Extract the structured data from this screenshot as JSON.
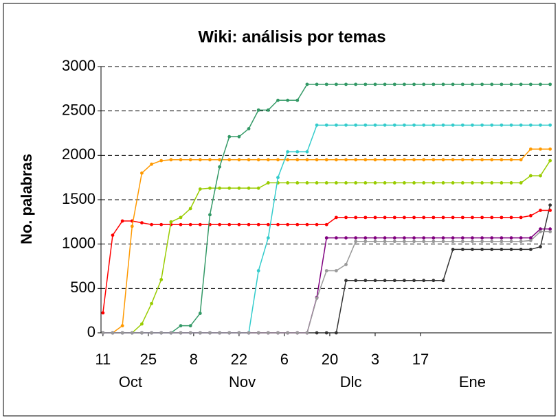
{
  "chart_data": {
    "type": "line",
    "title": "Wiki: análisis por temas",
    "ylabel": "No. palabras",
    "x": [
      0,
      3,
      6,
      9,
      12,
      15,
      18,
      21,
      24,
      27,
      30,
      33,
      36,
      39,
      42,
      45,
      48,
      51,
      54,
      57,
      60,
      63,
      66,
      69,
      72,
      75,
      78,
      81,
      84,
      87,
      90,
      93,
      96,
      99,
      102,
      105,
      108,
      111,
      114,
      117,
      120,
      123,
      126,
      129,
      132,
      135,
      138
    ],
    "xlim": [
      -0.6,
      138.5
    ],
    "xticks": [
      {
        "value": 0,
        "label": "11"
      },
      {
        "value": 14,
        "label": "25"
      },
      {
        "value": 28,
        "label": "8"
      },
      {
        "value": 42,
        "label": "22"
      },
      {
        "value": 56,
        "label": "6"
      },
      {
        "value": 70,
        "label": "20"
      },
      {
        "value": 84,
        "label": "3"
      },
      {
        "value": 98,
        "label": "17"
      }
    ],
    "month_labels": [
      {
        "value": 8.5,
        "label": "Oct"
      },
      {
        "value": 43,
        "label": "Nov"
      },
      {
        "value": 76.5,
        "label": "Dlc"
      },
      {
        "value": 114,
        "label": "Ene"
      }
    ],
    "ylim": [
      0,
      3000
    ],
    "yticks": [
      0,
      500,
      1000,
      1500,
      2000,
      2500,
      3000
    ],
    "grid": true,
    "series": [
      {
        "color": "#333333",
        "values": [
          0,
          0,
          0,
          0,
          0,
          0,
          0,
          0,
          0,
          0,
          0,
          0,
          0,
          0,
          0,
          0,
          0,
          0,
          0,
          0,
          0,
          0,
          0,
          0,
          0,
          590,
          590,
          590,
          590,
          590,
          590,
          590,
          590,
          590,
          590,
          590,
          940,
          940,
          940,
          940,
          940,
          940,
          940,
          940,
          940,
          970,
          1440
        ]
      },
      {
        "color": "#ff0000",
        "values": [
          225,
          1100,
          1260,
          1260,
          1240,
          1220,
          1220,
          1220,
          1220,
          1220,
          1220,
          1220,
          1220,
          1220,
          1220,
          1220,
          1220,
          1220,
          1220,
          1220,
          1220,
          1220,
          1220,
          1220,
          1300,
          1300,
          1300,
          1300,
          1300,
          1300,
          1300,
          1300,
          1300,
          1300,
          1300,
          1300,
          1300,
          1300,
          1300,
          1300,
          1300,
          1300,
          1300,
          1300,
          1320,
          1380,
          1380
        ]
      },
      {
        "color": "#ff9900",
        "values": [
          0,
          0,
          80,
          1200,
          1800,
          1900,
          1940,
          1950,
          1950,
          1950,
          1950,
          1950,
          1950,
          1950,
          1950,
          1950,
          1950,
          1950,
          1950,
          1950,
          1950,
          1950,
          1950,
          1950,
          1950,
          1950,
          1950,
          1950,
          1950,
          1950,
          1950,
          1950,
          1950,
          1950,
          1950,
          1950,
          1950,
          1950,
          1950,
          1950,
          1950,
          1950,
          1950,
          1950,
          2070,
          2070,
          2070
        ]
      },
      {
        "color": "#99cc00",
        "values": [
          0,
          0,
          0,
          0,
          100,
          330,
          600,
          1250,
          1300,
          1400,
          1620,
          1630,
          1630,
          1630,
          1630,
          1630,
          1630,
          1690,
          1690,
          1690,
          1690,
          1690,
          1690,
          1690,
          1690,
          1690,
          1690,
          1690,
          1690,
          1690,
          1690,
          1690,
          1690,
          1690,
          1690,
          1690,
          1690,
          1690,
          1690,
          1690,
          1690,
          1690,
          1690,
          1690,
          1770,
          1770,
          1940
        ]
      },
      {
        "color": "#339966",
        "values": [
          0,
          0,
          0,
          0,
          0,
          0,
          0,
          0,
          80,
          80,
          220,
          1330,
          1870,
          2210,
          2210,
          2300,
          2510,
          2510,
          2620,
          2620,
          2620,
          2800,
          2800,
          2800,
          2800,
          2800,
          2800,
          2800,
          2800,
          2800,
          2800,
          2800,
          2800,
          2800,
          2800,
          2800,
          2800,
          2800,
          2800,
          2800,
          2800,
          2800,
          2800,
          2800,
          2800,
          2800,
          2800
        ]
      },
      {
        "color": "#33cccc",
        "values": [
          0,
          0,
          0,
          0,
          0,
          0,
          0,
          0,
          0,
          0,
          0,
          0,
          0,
          0,
          0,
          0,
          700,
          1070,
          1750,
          2040,
          2040,
          2040,
          2340,
          2340,
          2340,
          2340,
          2340,
          2340,
          2340,
          2340,
          2340,
          2340,
          2340,
          2340,
          2340,
          2340,
          2340,
          2340,
          2340,
          2340,
          2340,
          2340,
          2340,
          2340,
          2340,
          2340,
          2340
        ]
      },
      {
        "color": "#800080",
        "values": [
          0,
          0,
          0,
          0,
          0,
          0,
          0,
          0,
          0,
          0,
          0,
          0,
          0,
          0,
          0,
          0,
          0,
          0,
          0,
          0,
          0,
          0,
          400,
          1070,
          1070,
          1070,
          1070,
          1070,
          1070,
          1070,
          1070,
          1070,
          1070,
          1070,
          1070,
          1070,
          1070,
          1070,
          1070,
          1070,
          1070,
          1070,
          1070,
          1070,
          1070,
          1170,
          1170
        ]
      },
      {
        "color": "#999999",
        "values": [
          0,
          0,
          0,
          0,
          0,
          0,
          0,
          0,
          0,
          0,
          0,
          0,
          0,
          0,
          0,
          0,
          0,
          0,
          0,
          0,
          0,
          0,
          390,
          700,
          700,
          770,
          1030,
          1030,
          1030,
          1030,
          1030,
          1030,
          1030,
          1030,
          1030,
          1030,
          1030,
          1030,
          1030,
          1030,
          1030,
          1030,
          1030,
          1030,
          1040,
          1140,
          1140
        ]
      }
    ]
  }
}
